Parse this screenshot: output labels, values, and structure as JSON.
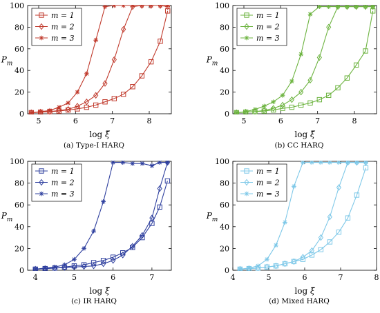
{
  "figure": {
    "ylabel_main": "P",
    "ylabel_sub": "m",
    "xlabel_prefix": "log",
    "xlabel_symbol": "ξ̄"
  },
  "chart_data": [
    {
      "type": "line",
      "caption_tag": "(a)",
      "caption_text": "Type-I HARQ",
      "color": "#c0392b",
      "xlabel": "log ξ̄",
      "ylabel": "P_m",
      "xlim": [
        4.7,
        8.6
      ],
      "ylim": [
        0,
        100
      ],
      "xticks": [
        5,
        6,
        7,
        8
      ],
      "yticks": [
        0,
        20,
        40,
        60,
        80,
        100
      ],
      "legend_position": "top-left",
      "series": [
        {
          "name": "m = 1",
          "marker": "square",
          "x": [
            4.8,
            5.05,
            5.3,
            5.55,
            5.8,
            6.05,
            6.3,
            6.55,
            6.8,
            7.05,
            7.3,
            7.55,
            7.8,
            8.05,
            8.3,
            8.5
          ],
          "y": [
            1,
            1.5,
            2,
            2.5,
            3.5,
            4.5,
            6,
            8,
            11,
            14,
            18,
            25,
            35,
            48,
            67,
            95
          ]
        },
        {
          "name": "m = 2",
          "marker": "diamond",
          "x": [
            4.8,
            5.05,
            5.3,
            5.55,
            5.8,
            6.05,
            6.3,
            6.55,
            6.8,
            7.05,
            7.3,
            7.55,
            7.8,
            8.05,
            8.3,
            8.5
          ],
          "y": [
            1,
            1.5,
            2,
            3,
            4,
            7,
            11,
            17,
            28,
            50,
            78,
            99,
            100,
            100,
            100,
            99
          ]
        },
        {
          "name": "m = 3",
          "marker": "star",
          "x": [
            4.8,
            5.05,
            5.3,
            5.55,
            5.8,
            6.05,
            6.3,
            6.55,
            6.8,
            7.05,
            7.3,
            7.55,
            7.8,
            8.05,
            8.3,
            8.5
          ],
          "y": [
            1,
            2,
            3,
            6,
            10,
            20,
            37,
            68,
            99,
            100,
            100,
            100,
            100,
            100,
            100,
            100
          ]
        }
      ]
    },
    {
      "type": "line",
      "caption_tag": "(b)",
      "caption_text": "CC HARQ",
      "color": "#6cb33f",
      "xlabel": "log ξ̄",
      "ylabel": "P_m",
      "xlim": [
        4.7,
        8.6
      ],
      "ylim": [
        0,
        100
      ],
      "xticks": [
        5,
        6,
        7,
        8
      ],
      "yticks": [
        0,
        20,
        40,
        60,
        80,
        100
      ],
      "legend_position": "top-left",
      "series": [
        {
          "name": "m = 1",
          "marker": "square",
          "x": [
            4.8,
            5.05,
            5.3,
            5.55,
            5.8,
            6.05,
            6.3,
            6.55,
            6.8,
            7.05,
            7.3,
            7.55,
            7.8,
            8.05,
            8.3,
            8.5
          ],
          "y": [
            1,
            1.5,
            2,
            2.5,
            3.5,
            5,
            6,
            8,
            10,
            13,
            17,
            24,
            33,
            45,
            58,
            95
          ]
        },
        {
          "name": "m = 2",
          "marker": "diamond",
          "x": [
            4.8,
            5.05,
            5.3,
            5.55,
            5.8,
            6.05,
            6.3,
            6.55,
            6.8,
            7.05,
            7.3,
            7.55,
            7.8,
            8.05,
            8.3,
            8.5
          ],
          "y": [
            1,
            1.5,
            2,
            3,
            5,
            8,
            13,
            20,
            31,
            52,
            80,
            99,
            99,
            99,
            99,
            99
          ]
        },
        {
          "name": "m = 3",
          "marker": "star",
          "x": [
            4.8,
            5.05,
            5.3,
            5.55,
            5.8,
            6.05,
            6.3,
            6.55,
            6.8,
            7.05,
            7.3,
            7.55,
            7.8,
            8.05,
            8.3,
            8.5
          ],
          "y": [
            1,
            2,
            4,
            7,
            11,
            17,
            30,
            55,
            92,
            99,
            99,
            99,
            99,
            99,
            99,
            99
          ]
        }
      ]
    },
    {
      "type": "line",
      "caption_tag": "(c)",
      "caption_text": "IR HARQ",
      "color": "#2e3f9e",
      "xlabel": "log ξ̄",
      "ylabel": "P_m",
      "xlim": [
        3.8,
        7.5
      ],
      "ylim": [
        0,
        100
      ],
      "xticks": [
        4,
        5,
        6,
        7
      ],
      "yticks": [
        0,
        20,
        40,
        60,
        80,
        100
      ],
      "legend_position": "top-left",
      "series": [
        {
          "name": "m = 1",
          "marker": "square",
          "x": [
            4.0,
            4.25,
            4.5,
            4.75,
            5.0,
            5.25,
            5.5,
            5.75,
            6.0,
            6.25,
            6.5,
            6.75,
            7.0,
            7.2,
            7.4
          ],
          "y": [
            1,
            1.5,
            2,
            3,
            4,
            5,
            7,
            9,
            12,
            16,
            21,
            30,
            43,
            58,
            82
          ]
        },
        {
          "name": "m = 2",
          "marker": "diamond",
          "x": [
            4.0,
            4.25,
            4.5,
            4.75,
            5.0,
            5.25,
            5.5,
            5.75,
            6.0,
            6.25,
            6.5,
            6.75,
            7.0,
            7.2,
            7.4
          ],
          "y": [
            1,
            1.5,
            2,
            2.5,
            3,
            3.5,
            4,
            6,
            9,
            14,
            22,
            32,
            48,
            75,
            99
          ]
        },
        {
          "name": "m = 3",
          "marker": "star",
          "x": [
            4.0,
            4.25,
            4.5,
            4.75,
            5.0,
            5.25,
            5.5,
            5.75,
            6.0,
            6.25,
            6.5,
            6.75,
            7.0,
            7.2,
            7.4
          ],
          "y": [
            1,
            2,
            3,
            5,
            10,
            20,
            36,
            63,
            99,
            99,
            98,
            98,
            96,
            99,
            99
          ]
        }
      ]
    },
    {
      "type": "line",
      "caption_tag": "(d)",
      "caption_text": "Mixed HARQ",
      "color": "#7ec8e8",
      "xlabel": "log ξ̄",
      "ylabel": "P_m",
      "xlim": [
        4.0,
        8.0
      ],
      "ylim": [
        0,
        100
      ],
      "xticks": [
        4,
        5,
        6,
        7,
        8
      ],
      "yticks": [
        0,
        20,
        40,
        60,
        80,
        100
      ],
      "legend_position": "top-left",
      "series": [
        {
          "name": "m = 1",
          "marker": "square",
          "x": [
            4.2,
            4.45,
            4.7,
            4.95,
            5.2,
            5.45,
            5.7,
            5.95,
            6.2,
            6.45,
            6.7,
            6.95,
            7.2,
            7.45,
            7.7
          ],
          "y": [
            1,
            1.5,
            2,
            3,
            4,
            6,
            8,
            10,
            14,
            19,
            26,
            35,
            48,
            69,
            94
          ]
        },
        {
          "name": "m = 2",
          "marker": "diamond",
          "x": [
            4.2,
            4.45,
            4.7,
            4.95,
            5.2,
            5.45,
            5.7,
            5.95,
            6.2,
            6.45,
            6.7,
            6.95,
            7.2,
            7.45,
            7.7
          ],
          "y": [
            1,
            1.5,
            2,
            3,
            4,
            6,
            8,
            12,
            18,
            30,
            49,
            76,
            99,
            99,
            99
          ]
        },
        {
          "name": "m = 3",
          "marker": "star",
          "x": [
            4.2,
            4.45,
            4.7,
            4.95,
            5.2,
            5.45,
            5.7,
            5.95,
            6.2,
            6.45,
            6.7,
            6.95,
            7.2,
            7.45,
            7.7
          ],
          "y": [
            1,
            2,
            4,
            10,
            23,
            44,
            77,
            99,
            99,
            99,
            99,
            99,
            99,
            99,
            99
          ]
        }
      ]
    }
  ]
}
